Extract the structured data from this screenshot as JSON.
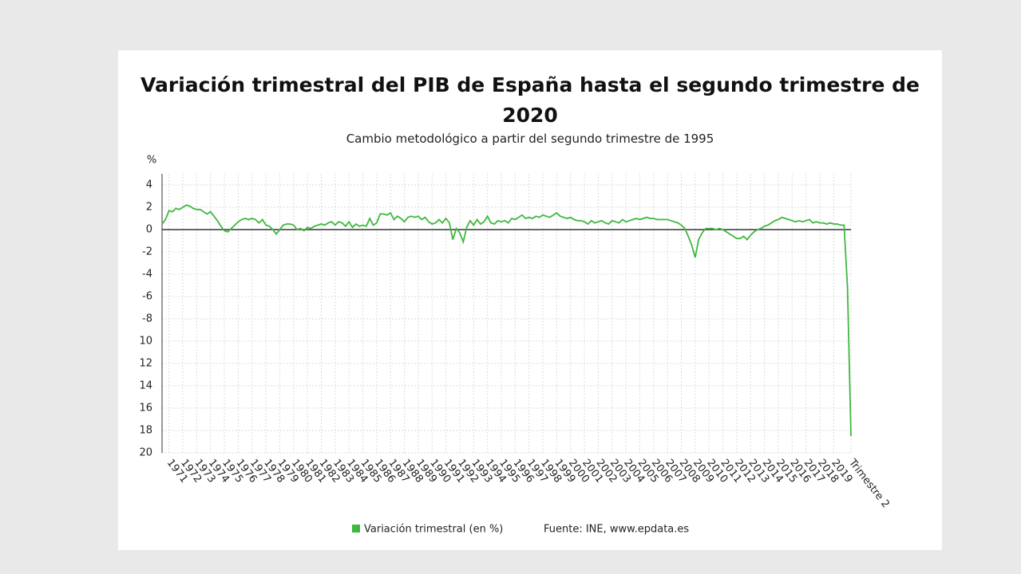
{
  "chart_data": {
    "type": "line",
    "title": "Variación trimestral del PIB de España hasta el segundo trimestre de 2020",
    "subtitle": "Cambio metodológico a partir del segundo trimestre de 1995",
    "y_label": "%",
    "source": "Fuente: INE, www.epdata.es",
    "categories": [
      null,
      null,
      "1971",
      null,
      null,
      null,
      "1972",
      null,
      null,
      null,
      "1973",
      null,
      null,
      null,
      "1974",
      null,
      null,
      null,
      "1975",
      null,
      null,
      null,
      "1976",
      null,
      null,
      null,
      "1977",
      null,
      null,
      null,
      "1978",
      null,
      null,
      null,
      "1979",
      null,
      null,
      null,
      "1980",
      null,
      null,
      null,
      "1981",
      null,
      null,
      null,
      "1982",
      null,
      null,
      null,
      "1983",
      null,
      null,
      null,
      "1984",
      null,
      null,
      null,
      "1985",
      null,
      null,
      null,
      "1986",
      null,
      null,
      null,
      "1987",
      null,
      null,
      null,
      "1988",
      null,
      null,
      null,
      "1989",
      null,
      null,
      null,
      "1990",
      null,
      null,
      null,
      "1991",
      null,
      null,
      null,
      "1992",
      null,
      null,
      null,
      "1993",
      null,
      null,
      null,
      "1994",
      null,
      null,
      null,
      "1995",
      null,
      null,
      null,
      "1996",
      null,
      null,
      null,
      "1997",
      null,
      null,
      null,
      "1998",
      null,
      null,
      null,
      "1999",
      null,
      null,
      null,
      "2000",
      null,
      null,
      null,
      "2001",
      null,
      null,
      null,
      "2002",
      null,
      null,
      null,
      "2003",
      null,
      null,
      null,
      "2004",
      null,
      null,
      null,
      "2005",
      null,
      null,
      null,
      "2006",
      null,
      null,
      null,
      "2007",
      null,
      null,
      null,
      "2008",
      null,
      null,
      null,
      "2009",
      null,
      null,
      null,
      "2010",
      null,
      null,
      null,
      "2011",
      null,
      null,
      null,
      "2012",
      null,
      null,
      null,
      "2013",
      null,
      null,
      null,
      "2014",
      null,
      null,
      null,
      "2015",
      null,
      null,
      null,
      "2016",
      null,
      null,
      null,
      "2017",
      null,
      null,
      null,
      "2018",
      null,
      null,
      null,
      "2019",
      null,
      null,
      null,
      null,
      "Trimestre 2"
    ],
    "series": [
      {
        "name": "Variación trimestral (en %)",
        "color": "#3fb83f",
        "values": [
          0.5,
          0.9,
          1.7,
          1.6,
          1.9,
          1.8,
          2.0,
          2.2,
          2.1,
          1.9,
          1.8,
          1.8,
          1.6,
          1.4,
          1.6,
          1.2,
          0.8,
          0.3,
          -0.1,
          -0.2,
          0.1,
          0.4,
          0.7,
          0.9,
          1.0,
          0.9,
          1.0,
          0.9,
          0.6,
          0.9,
          0.4,
          0.3,
          0.0,
          -0.4,
          0.0,
          0.4,
          0.5,
          0.5,
          0.4,
          0.0,
          0.1,
          -0.1,
          0.2,
          0.1,
          0.3,
          0.4,
          0.5,
          0.4,
          0.6,
          0.7,
          0.4,
          0.7,
          0.6,
          0.3,
          0.7,
          0.2,
          0.5,
          0.3,
          0.4,
          0.3,
          1.0,
          0.4,
          0.6,
          1.4,
          1.4,
          1.3,
          1.5,
          0.9,
          1.2,
          1.0,
          0.7,
          1.1,
          1.2,
          1.1,
          1.2,
          0.9,
          1.1,
          0.7,
          0.5,
          0.6,
          0.9,
          0.6,
          1.0,
          0.6,
          -0.9,
          0.1,
          -0.3,
          -1.1,
          0.2,
          0.8,
          0.4,
          0.9,
          0.5,
          0.7,
          1.2,
          0.6,
          0.5,
          0.8,
          0.7,
          0.8,
          0.6,
          1.0,
          0.9,
          1.1,
          1.3,
          1.0,
          1.1,
          1.0,
          1.2,
          1.1,
          1.3,
          1.2,
          1.1,
          1.3,
          1.5,
          1.2,
          1.1,
          1.0,
          1.1,
          0.9,
          0.8,
          0.8,
          0.7,
          0.5,
          0.8,
          0.6,
          0.7,
          0.8,
          0.6,
          0.5,
          0.8,
          0.7,
          0.6,
          0.9,
          0.7,
          0.8,
          0.9,
          1.0,
          0.9,
          1.0,
          1.1,
          1.0,
          1.0,
          0.9,
          0.9,
          0.9,
          0.9,
          0.8,
          0.7,
          0.6,
          0.4,
          0.1,
          -0.6,
          -1.4,
          -2.5,
          -0.9,
          -0.3,
          0.1,
          0.1,
          0.1,
          0.0,
          0.1,
          0.0,
          -0.2,
          -0.4,
          -0.6,
          -0.8,
          -0.8,
          -0.6,
          -0.9,
          -0.5,
          -0.2,
          0.0,
          0.1,
          0.3,
          0.4,
          0.6,
          0.8,
          0.9,
          1.1,
          1.0,
          0.9,
          0.8,
          0.7,
          0.8,
          0.7,
          0.8,
          0.9,
          0.6,
          0.7,
          0.6,
          0.6,
          0.5,
          0.6,
          0.5,
          0.5,
          0.4,
          0.4,
          -5.2,
          -18.5
        ]
      }
    ],
    "ylim": [
      -20,
      5
    ],
    "yticks": [
      4,
      2,
      0,
      -2,
      -4,
      -6,
      -8,
      {
        "value": -10,
        "label": "10"
      },
      {
        "value": -12,
        "label": "12"
      },
      {
        "value": -14,
        "label": "14"
      },
      {
        "value": -16,
        "label": "16"
      },
      {
        "value": -18,
        "label": "18"
      },
      {
        "value": -20,
        "label": "20"
      }
    ],
    "grid": true
  }
}
